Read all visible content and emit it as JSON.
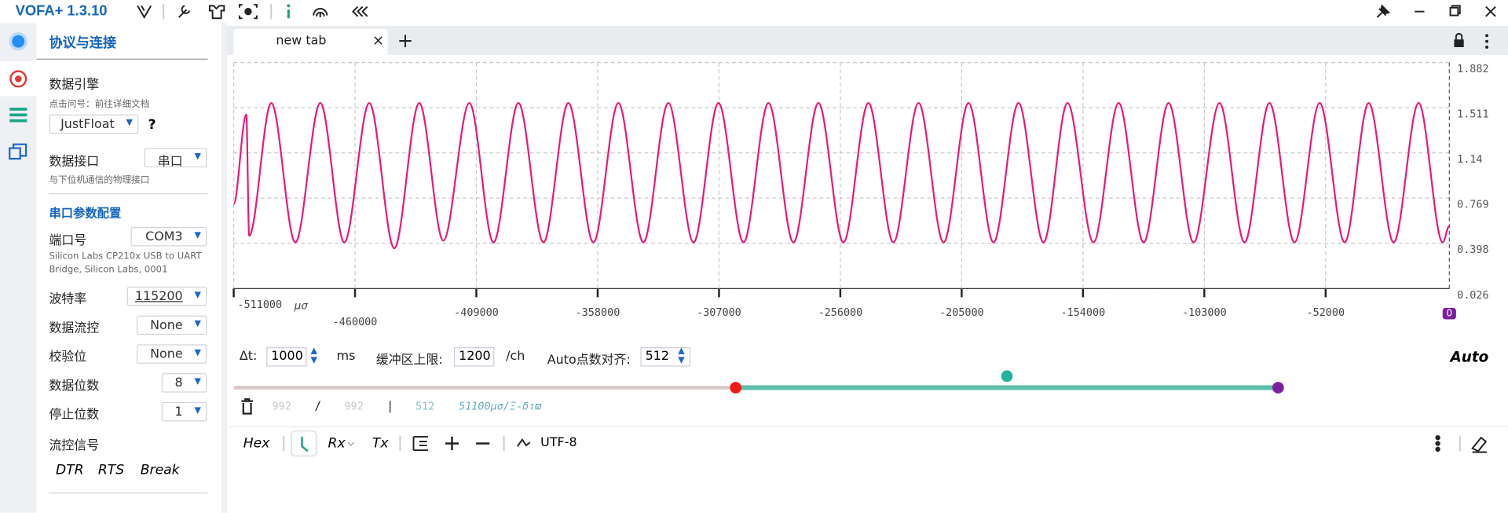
{
  "title_bar": {
    "app_name": "VOFA+ 1.3.10"
  },
  "sidebar": {
    "title": "协议与连接",
    "engine_label": "数据引擎",
    "engine_hint": "点击问号：前往详细文档",
    "engine_value": "JustFloat",
    "help": "?",
    "interface_label": "数据接口",
    "interface_value": "串口",
    "interface_hint": "与下位机通信的物理接口",
    "serial_title": "串口参数配置",
    "port_label": "端口号",
    "port_value": "COM3",
    "port_desc_1": "Silicon Labs CP210x USB to UART",
    "port_desc_2": "Bridge, Silicon Labs, 0001",
    "fields": [
      {
        "label": "波特率",
        "value": "115200"
      },
      {
        "label": "数据流控",
        "value": "None"
      },
      {
        "label": "校验位",
        "value": "None"
      },
      {
        "label": "数据位数",
        "value": "8"
      },
      {
        "label": "停止位数",
        "value": "1"
      }
    ],
    "flow_signal_label": "流控信号",
    "flow_buttons": [
      "DTR",
      "RTS",
      "Break"
    ]
  },
  "tabs": {
    "active": "new tab"
  },
  "chart_data": {
    "type": "line",
    "color": "#e8197a",
    "x_unit": "μσ",
    "cursor_label": "0",
    "x": [
      -511000,
      -505700,
      -504500,
      -495200,
      -485100,
      -474600,
      -464500,
      -454000,
      -443500,
      -433000,
      -422900,
      -411900,
      -401800,
      -391300,
      -380800,
      -370300,
      -359800,
      -349300,
      -338800,
      -328300,
      -317700,
      -307200,
      -296700,
      -286200,
      -275700,
      -265200,
      -254700,
      -244200,
      -233700,
      -223100,
      -212600,
      -202100,
      -191600,
      -181100,
      -170600,
      -160500,
      -149600,
      -139000,
      -128500,
      -118000,
      -107500,
      -96600,
      -86100,
      -75600,
      -65100,
      -54500,
      -44000,
      -33900,
      -23400,
      -12900,
      -2800,
      0
    ],
    "values": [
      0.721,
      1.455,
      0.46,
      1.55,
      0.405,
      1.55,
      0.405,
      1.55,
      0.357,
      1.55,
      0.42,
      1.55,
      0.405,
      1.55,
      0.405,
      1.55,
      0.405,
      1.55,
      0.405,
      1.55,
      0.405,
      1.55,
      0.405,
      1.55,
      0.405,
      1.55,
      0.405,
      1.55,
      0.405,
      1.55,
      0.405,
      1.55,
      0.405,
      1.55,
      0.405,
      1.55,
      0.405,
      1.55,
      0.405,
      1.55,
      0.405,
      1.55,
      0.405,
      1.55,
      0.405,
      1.55,
      0.405,
      1.55,
      0.405,
      1.55,
      0.405,
      0.539
    ],
    "xlim": [
      -511000,
      0
    ],
    "ylim": [
      0.026,
      1.882
    ],
    "xticks": [
      -511000,
      -460000,
      -409000,
      -358000,
      -307000,
      -256000,
      -205000,
      -154000,
      -103000,
      -52000
    ],
    "yticks": [
      1.882,
      1.511,
      1.14,
      0.769,
      0.398,
      0.026
    ],
    "grid": true
  },
  "controls": {
    "dt_label": "Δt:",
    "dt_value": 1000,
    "dt_unit": "ms",
    "buffer_label": "缓冲区上限:",
    "buffer_value": 1200,
    "buffer_unit": "/ch",
    "align_label": "Auto点数对齐:",
    "align_value": 512,
    "auto": "Auto"
  },
  "stats": {
    "received": 992,
    "slash": "/",
    "total": 992,
    "bar": "|",
    "points": 512,
    "span": "51100μσ/Ξ-διϖ"
  },
  "toolbar": {
    "hex": "Hex",
    "rx": "Rx",
    "tx": "Tx",
    "encoding": "UTF-8"
  }
}
